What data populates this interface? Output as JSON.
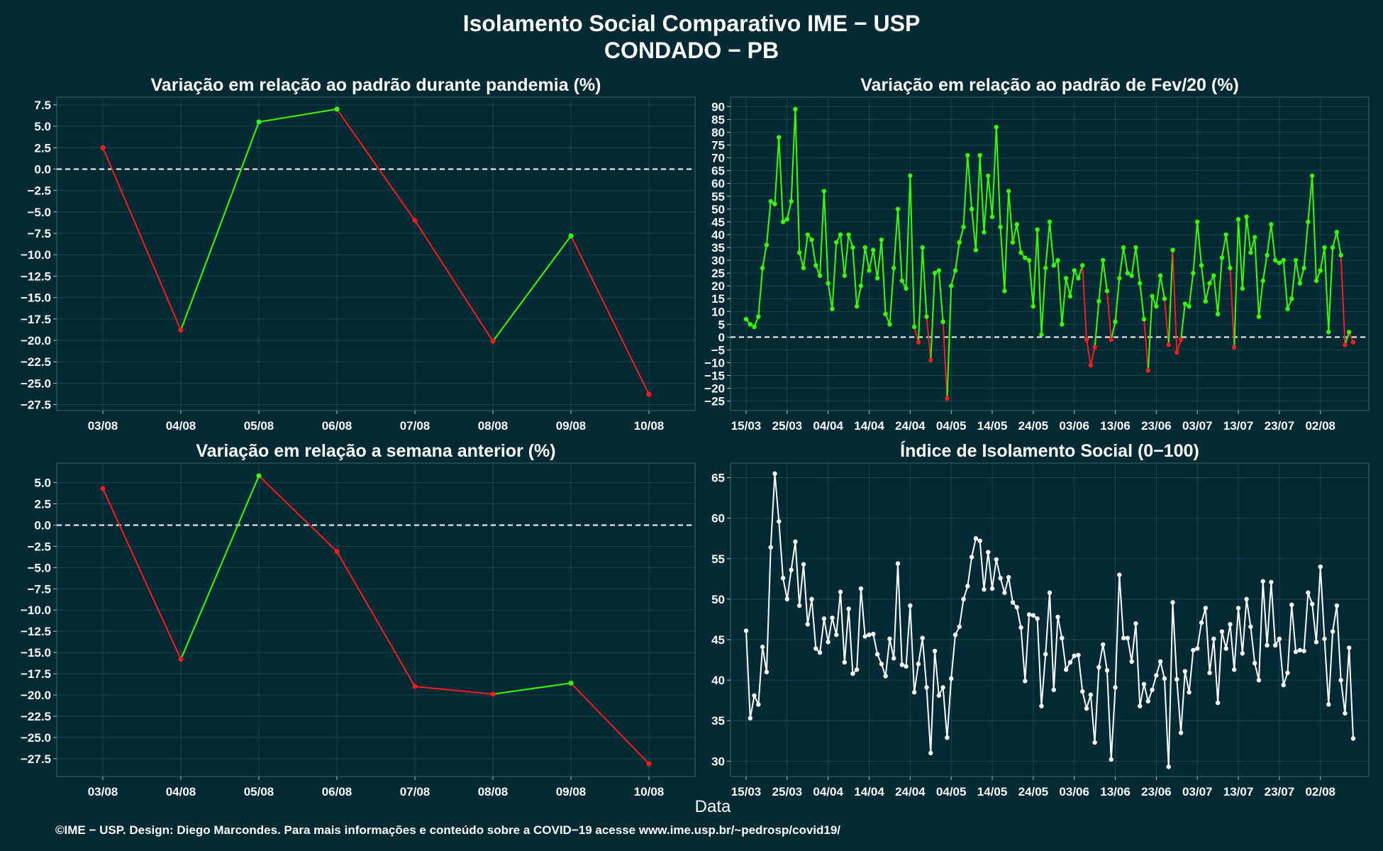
{
  "header": {
    "title": "Isolamento Social Comparativo IME − USP",
    "subtitle": "CONDADO − PB"
  },
  "x_axis_label": "Data",
  "footer": "©IME − USP. Design: Diego Marcondes. Para mais informações e conteúdo sobre a COVID−19 acesse www.ime.usp.br/~pedrosp/covid19/",
  "colors": {
    "background": "#022a35",
    "positive": "#33ff00",
    "negative": "#ff1a1a",
    "index_line": "#ffffff",
    "grid": "#1c4550",
    "zero_line": "#ffffff"
  },
  "chart_data": [
    {
      "id": "pandemic",
      "type": "line",
      "title": "Variação em relação ao padrão durante pandemia (%)",
      "categories": [
        "03/08",
        "04/08",
        "05/08",
        "06/08",
        "07/08",
        "08/08",
        "09/08",
        "10/08"
      ],
      "values": [
        2.5,
        -18.8,
        5.5,
        7.0,
        -6.0,
        -20.1,
        -7.8,
        -26.3
      ],
      "yticks": [
        7.5,
        5.0,
        2.5,
        0.0,
        -2.5,
        -5.0,
        -7.5,
        -10.0,
        -12.5,
        -15.0,
        -17.5,
        -20.0,
        -22.5,
        -25.0,
        -27.5
      ],
      "ylim": [
        -28.2,
        8.4
      ],
      "zero_line": true,
      "color_rule": "green when the segment rises, red when it falls"
    },
    {
      "id": "feb",
      "type": "line",
      "title": "Variação em relação ao padrão de Fev/20 (%)",
      "x_start": "15/03",
      "xticks": [
        "15/03",
        "25/03",
        "04/04",
        "14/04",
        "24/04",
        "04/05",
        "14/05",
        "24/05",
        "03/06",
        "13/06",
        "23/06",
        "03/07",
        "13/07",
        "23/07",
        "02/08"
      ],
      "values": [
        7,
        5,
        4,
        8,
        27,
        36,
        53,
        52,
        78,
        45,
        46,
        53,
        89,
        33,
        27,
        40,
        38,
        28,
        24,
        57,
        21,
        11,
        37,
        40,
        24,
        40,
        35,
        12,
        20,
        35,
        26,
        34,
        23,
        38,
        9,
        5,
        27,
        50,
        22,
        19,
        63,
        4,
        -2,
        35,
        8,
        -9,
        25,
        26,
        6,
        -24,
        20,
        26,
        37,
        43,
        71,
        50,
        34,
        71,
        41,
        63,
        47,
        82,
        43,
        18,
        57,
        37,
        44,
        33,
        31,
        30,
        12,
        42,
        1,
        27,
        45,
        28,
        30,
        5,
        23,
        16,
        26,
        23,
        28,
        -1,
        -11,
        -4,
        14,
        30,
        18,
        -1,
        6,
        23,
        35,
        25,
        24,
        35,
        21,
        7,
        -13,
        16,
        12,
        24,
        15,
        -3,
        34,
        -6,
        -1,
        13,
        12,
        25,
        45,
        28,
        14,
        21,
        24,
        9,
        31,
        40,
        27,
        -4,
        46,
        19,
        47,
        33,
        39,
        8,
        22,
        32,
        44,
        30,
        29,
        30,
        11,
        15,
        30,
        21,
        27,
        45,
        63,
        22,
        26,
        35,
        2,
        35,
        41,
        32,
        -3,
        2,
        -2
      ],
      "yticks": [
        90,
        85,
        80,
        75,
        70,
        65,
        60,
        55,
        50,
        45,
        40,
        35,
        30,
        25,
        20,
        15,
        10,
        5,
        0,
        -5,
        -10,
        -15,
        -20,
        -25
      ],
      "ylim": [
        -28.7,
        93.7
      ],
      "zero_line": true,
      "color_rule": "green when value >= 0, red when value < 0"
    },
    {
      "id": "week",
      "type": "line",
      "title": "Variação em relação a semana anterior (%)",
      "categories": [
        "03/08",
        "04/08",
        "05/08",
        "06/08",
        "07/08",
        "08/08",
        "09/08",
        "10/08"
      ],
      "values": [
        4.3,
        -15.8,
        5.8,
        -3.1,
        -19.0,
        -19.9,
        -18.6,
        -28.1
      ],
      "yticks": [
        5.0,
        2.5,
        0.0,
        -2.5,
        -5.0,
        -7.5,
        -10.0,
        -12.5,
        -15.0,
        -17.5,
        -20.0,
        -22.5,
        -25.0,
        -27.5
      ],
      "ylim": [
        -29.6,
        7.3
      ],
      "zero_line": true,
      "color_rule": "green when the segment rises, red when it falls"
    },
    {
      "id": "index",
      "type": "line",
      "title": "Índice de Isolamento Social (0−100)",
      "x_start": "15/03",
      "xticks": [
        "15/03",
        "25/03",
        "04/04",
        "14/04",
        "24/04",
        "04/05",
        "14/05",
        "24/05",
        "03/06",
        "13/06",
        "23/06",
        "03/07",
        "13/07",
        "23/07",
        "02/08"
      ],
      "values": [
        46.1,
        35.3,
        38.1,
        37.0,
        44.1,
        41.0,
        56.4,
        65.5,
        59.6,
        52.6,
        50.0,
        53.6,
        57.1,
        49.2,
        54.3,
        46.9,
        50.0,
        43.9,
        43.4,
        47.6,
        44.7,
        47.7,
        45.6,
        50.9,
        42.2,
        48.8,
        40.8,
        41.3,
        51.3,
        45.4,
        45.6,
        45.7,
        43.2,
        42.0,
        40.5,
        45.1,
        42.7,
        54.4,
        41.9,
        41.7,
        49.2,
        38.5,
        42.0,
        45.2,
        39.1,
        31.0,
        43.6,
        38.1,
        39.1,
        32.9,
        40.2,
        45.6,
        46.6,
        50.0,
        51.6,
        55.2,
        57.5,
        57.2,
        51.2,
        55.8,
        51.3,
        54.9,
        52.6,
        50.8,
        52.7,
        49.6,
        49.0,
        46.5,
        39.9,
        48.1,
        48.0,
        47.6,
        36.8,
        43.2,
        50.8,
        38.8,
        47.8,
        45.2,
        41.3,
        42.2,
        43.0,
        43.1,
        38.6,
        36.5,
        38.2,
        32.3,
        41.6,
        44.4,
        41.2,
        30.2,
        39.1,
        53.0,
        45.2,
        45.2,
        42.3,
        47.0,
        36.8,
        39.5,
        37.4,
        38.8,
        40.6,
        42.3,
        40.2,
        29.3,
        49.6,
        40.1,
        33.5,
        41.1,
        38.5,
        43.7,
        43.9,
        47.1,
        48.9,
        40.9,
        45.1,
        37.2,
        46.0,
        43.9,
        46.9,
        41.3,
        48.9,
        43.3,
        50.0,
        46.6,
        42.1,
        40.0,
        52.2,
        44.3,
        52.1,
        44.3,
        45.1,
        39.4,
        40.9,
        49.3,
        43.5,
        43.7,
        43.6,
        50.8,
        49.4,
        44.7,
        54.0,
        45.1,
        37.0,
        46.0,
        49.2,
        40.0,
        35.9,
        44.0,
        32.8
      ],
      "yticks": [
        65,
        60,
        55,
        50,
        45,
        40,
        35,
        30
      ],
      "ylim": [
        28.1,
        66.8
      ],
      "zero_line": false,
      "color_rule": "single white line"
    }
  ]
}
